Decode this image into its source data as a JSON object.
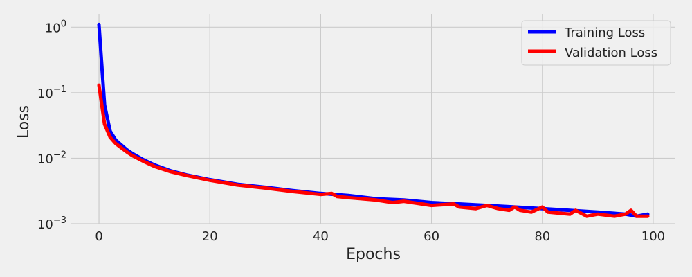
{
  "chart_data": {
    "type": "line",
    "title": "",
    "xlabel": "Epochs",
    "ylabel": "Loss",
    "yscale": "log",
    "xlim": [
      -5,
      104
    ],
    "ylim": [
      0.001,
      1.6
    ],
    "grid": true,
    "legend_placement": "top-right",
    "x_ticks": [
      0,
      20,
      40,
      60,
      80,
      100
    ],
    "x_tick_labels": [
      "0",
      "20",
      "40",
      "60",
      "80",
      "100"
    ],
    "y_ticks": [
      {
        "value": 1,
        "base": "10",
        "exp": "0"
      },
      {
        "value": 0.1,
        "base": "10",
        "exp": "−1"
      },
      {
        "value": 0.01,
        "base": "10",
        "exp": "−2"
      },
      {
        "value": 0.001,
        "base": "10",
        "exp": "−3"
      }
    ],
    "series": [
      {
        "name": "Training Loss",
        "color": "#0000ff",
        "x": [
          0,
          1,
          2,
          3,
          4,
          5,
          6,
          8,
          10,
          13,
          16,
          20,
          25,
          30,
          35,
          40,
          45,
          50,
          55,
          60,
          65,
          70,
          75,
          80,
          85,
          90,
          95,
          97,
          99
        ],
        "y": [
          1.1,
          0.065,
          0.026,
          0.019,
          0.016,
          0.0135,
          0.0118,
          0.0095,
          0.0079,
          0.0064,
          0.0055,
          0.0047,
          0.004,
          0.0036,
          0.0032,
          0.0029,
          0.0027,
          0.0024,
          0.0023,
          0.0021,
          0.002,
          0.0019,
          0.0018,
          0.0017,
          0.0016,
          0.0015,
          0.0014,
          0.0013,
          0.0014
        ]
      },
      {
        "name": "Validation Loss",
        "color": "#ff0000",
        "x": [
          0,
          1,
          2,
          3,
          4,
          5,
          6,
          8,
          10,
          13,
          16,
          20,
          25,
          30,
          35,
          40,
          42,
          43,
          45,
          50,
          53,
          55,
          60,
          64,
          65,
          68,
          70,
          72,
          74,
          75,
          76,
          78,
          80,
          81,
          85,
          86,
          88,
          90,
          93,
          95,
          96,
          97,
          99
        ],
        "y": [
          0.13,
          0.033,
          0.021,
          0.0168,
          0.0145,
          0.0125,
          0.011,
          0.009,
          0.0075,
          0.0062,
          0.0054,
          0.0046,
          0.0039,
          0.0035,
          0.0031,
          0.0028,
          0.0029,
          0.0026,
          0.0025,
          0.0023,
          0.0021,
          0.0022,
          0.0019,
          0.002,
          0.0018,
          0.0017,
          0.0019,
          0.0017,
          0.0016,
          0.0018,
          0.0016,
          0.0015,
          0.0018,
          0.0015,
          0.0014,
          0.0016,
          0.0013,
          0.0014,
          0.0013,
          0.0014,
          0.0016,
          0.0013,
          0.0013
        ]
      }
    ]
  }
}
